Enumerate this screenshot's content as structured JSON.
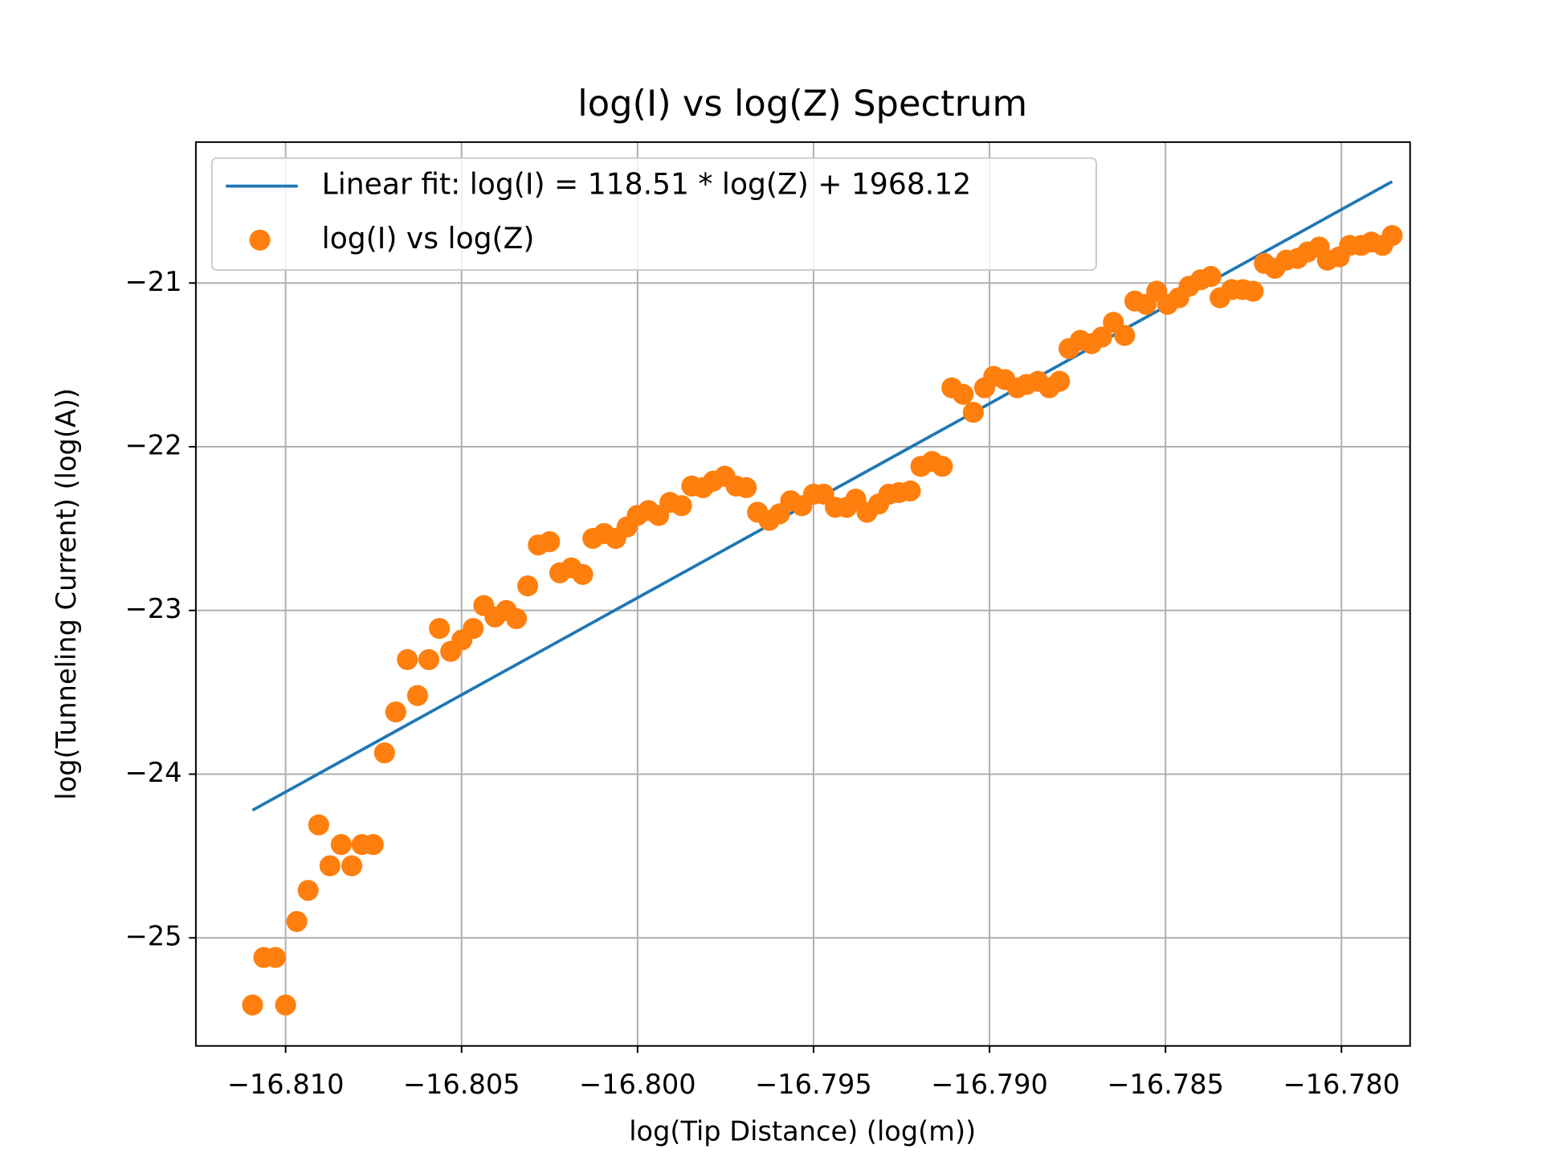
{
  "chart_data": {
    "type": "scatter",
    "title": "log(I) vs log(Z) Spectrum",
    "x_label": "log(Tip Distance) (log(m))",
    "y_label": "log(Tunneling Current) (log(A))",
    "xlim": [
      -16.81255,
      -16.77805
    ],
    "ylim": [
      -25.66,
      -20.139
    ],
    "xticks": [
      {
        "value": -16.81,
        "label": "−16.810"
      },
      {
        "value": -16.805,
        "label": "−16.805"
      },
      {
        "value": -16.8,
        "label": "−16.800"
      },
      {
        "value": -16.795,
        "label": "−16.795"
      },
      {
        "value": -16.79,
        "label": "−16.790"
      },
      {
        "value": -16.785,
        "label": "−16.785"
      },
      {
        "value": -16.78,
        "label": "−16.780"
      }
    ],
    "yticks": [
      {
        "value": -25,
        "label": "−25"
      },
      {
        "value": -24,
        "label": "−24"
      },
      {
        "value": -23,
        "label": "−23"
      },
      {
        "value": -22,
        "label": "−22"
      },
      {
        "value": -21,
        "label": "−21"
      }
    ],
    "grid": true,
    "legend": "upper left",
    "series": [
      {
        "name": "Linear fit: log(I) = 118.51 * log(Z) + 1968.12",
        "color": "#1f77b4",
        "mode": "line",
        "x": [
          -16.81094,
          -16.77856
        ],
        "values": [
          -24.22,
          -20.38
        ]
      },
      {
        "name": "log(I) vs log(Z)",
        "color": "#ff7f0e",
        "mode": "markers",
        "x": [
          -16.81094,
          -16.81062,
          -16.81029,
          -16.81,
          -16.80968,
          -16.80936,
          -16.80906,
          -16.80874,
          -16.80842,
          -16.80812,
          -16.80783,
          -16.80751,
          -16.80719,
          -16.80687,
          -16.80654,
          -16.80625,
          -16.80593,
          -16.80563,
          -16.80531,
          -16.80499,
          -16.80467,
          -16.80437,
          -16.80405,
          -16.80373,
          -16.80344,
          -16.80312,
          -16.80282,
          -16.8025,
          -16.80221,
          -16.80188,
          -16.80156,
          -16.80127,
          -16.80095,
          -16.80062,
          -16.8003,
          -16.80001,
          -16.79969,
          -16.7994,
          -16.79908,
          -16.79875,
          -16.79846,
          -16.79814,
          -16.79785,
          -16.79752,
          -16.7972,
          -16.79691,
          -16.79659,
          -16.79626,
          -16.79597,
          -16.79565,
          -16.79533,
          -16.795,
          -16.79471,
          -16.79438,
          -16.79406,
          -16.7938,
          -16.79348,
          -16.79315,
          -16.79286,
          -16.79257,
          -16.79225,
          -16.79195,
          -16.79163,
          -16.79134,
          -16.79107,
          -16.79075,
          -16.79046,
          -16.79014,
          -16.78988,
          -16.78956,
          -16.78921,
          -16.78895,
          -16.78862,
          -16.7883,
          -16.78801,
          -16.78774,
          -16.78742,
          -16.7871,
          -16.78681,
          -16.78648,
          -16.78616,
          -16.78587,
          -16.78555,
          -16.78525,
          -16.78494,
          -16.78462,
          -16.78433,
          -16.784,
          -16.78371,
          -16.78345,
          -16.78312,
          -16.7828,
          -16.78251,
          -16.78219,
          -16.78189,
          -16.78157,
          -16.78125,
          -16.78096,
          -16.78063,
          -16.7804,
          -16.78006,
          -16.77977,
          -16.77944,
          -16.77915,
          -16.77883,
          -16.77856
        ],
        "values": [
          -25.41,
          -25.12,
          -25.12,
          -25.41,
          -24.9,
          -24.71,
          -24.31,
          -24.56,
          -24.43,
          -24.56,
          -24.43,
          -24.43,
          -23.87,
          -23.62,
          -23.3,
          -23.52,
          -23.3,
          -23.11,
          -23.25,
          -23.18,
          -23.11,
          -22.97,
          -23.04,
          -23.0,
          -23.05,
          -22.85,
          -22.6,
          -22.58,
          -22.77,
          -22.74,
          -22.78,
          -22.56,
          -22.53,
          -22.56,
          -22.49,
          -22.42,
          -22.39,
          -22.42,
          -22.34,
          -22.36,
          -22.24,
          -22.25,
          -22.21,
          -22.18,
          -22.24,
          -22.25,
          -22.4,
          -22.45,
          -22.41,
          -22.33,
          -22.36,
          -22.29,
          -22.29,
          -22.37,
          -22.37,
          -22.32,
          -22.4,
          -22.35,
          -22.29,
          -22.28,
          -22.27,
          -22.12,
          -22.09,
          -22.12,
          -21.64,
          -21.68,
          -21.79,
          -21.64,
          -21.57,
          -21.59,
          -21.64,
          -21.62,
          -21.6,
          -21.64,
          -21.6,
          -21.4,
          -21.35,
          -21.37,
          -21.33,
          -21.24,
          -21.32,
          -21.11,
          -21.13,
          -21.05,
          -21.13,
          -21.09,
          -21.02,
          -20.98,
          -20.96,
          -21.09,
          -21.04,
          -21.04,
          -21.05,
          -20.88,
          -20.91,
          -20.86,
          -20.85,
          -20.81,
          -20.78,
          -20.86,
          -20.84,
          -20.77,
          -20.77,
          -20.75,
          -20.77,
          -20.71
        ]
      }
    ]
  }
}
